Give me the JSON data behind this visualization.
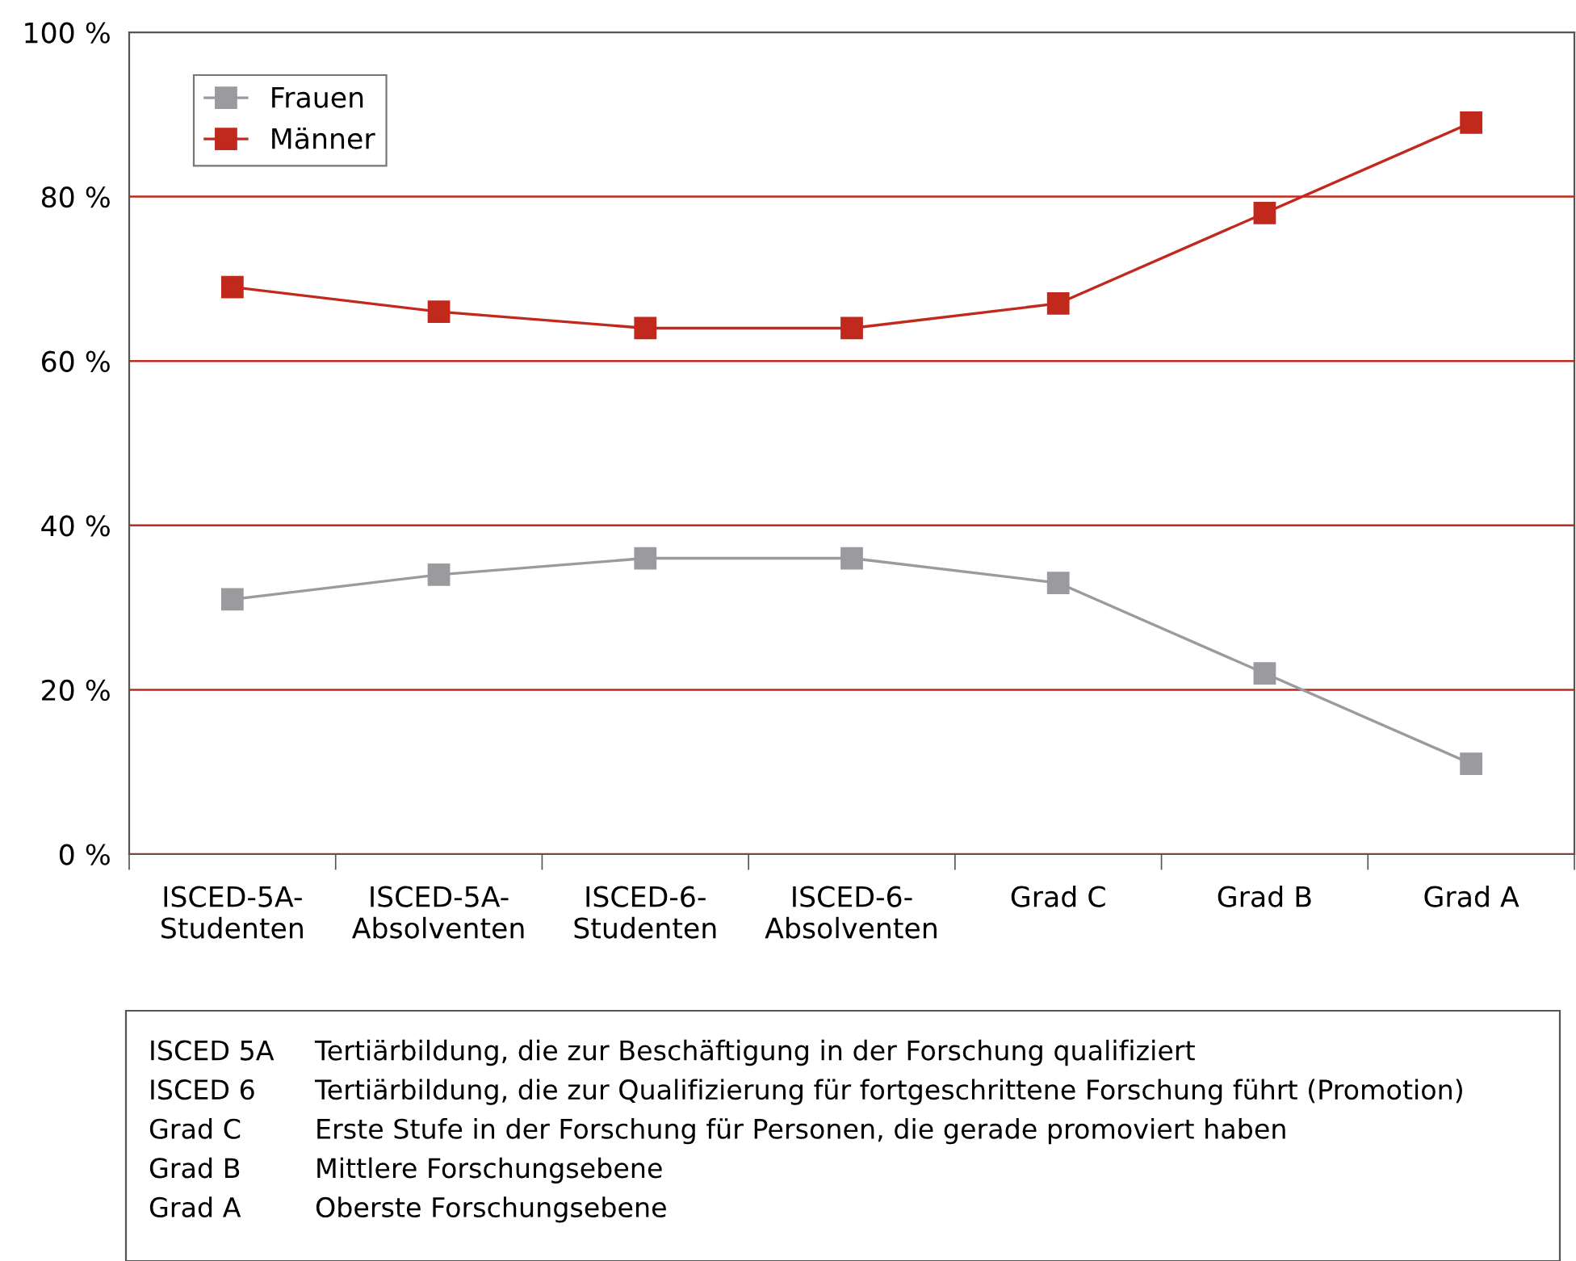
{
  "chart_data": {
    "type": "line",
    "categories": [
      "ISCED-5A-\nStudenten",
      "ISCED-5A-\nAbsolventen",
      "ISCED-6-\nStudenten",
      "ISCED-6-\nAbsolventen",
      "Grad C",
      "Grad B",
      "Grad A"
    ],
    "series": [
      {
        "name": "Frauen",
        "color": "#9b9a9f",
        "values": [
          31,
          34,
          36,
          36,
          33,
          22,
          11
        ]
      },
      {
        "name": "Männer",
        "color": "#c1291d",
        "values": [
          69,
          66,
          64,
          64,
          67,
          78,
          89
        ]
      }
    ],
    "ylim": [
      0,
      100
    ],
    "yticks": [
      {
        "value": 0,
        "label": "0 %"
      },
      {
        "value": 20,
        "label": "20 %"
      },
      {
        "value": 40,
        "label": "40 %"
      },
      {
        "value": 60,
        "label": "60 %"
      },
      {
        "value": 80,
        "label": "80 %"
      },
      {
        "value": 100,
        "label": "100 %"
      }
    ],
    "grid": "y",
    "legend": "top left",
    "marker": "square",
    "line_style": "solid",
    "annotations": [
      "ISCED 5A",
      "Tertiärbildung, die zur Beschäftigung in der Forschung qualifiziert",
      "ISCED 6",
      "Tertiärbildung, die zur Qualifizierung für fortgeschrittene Forschung führt (Promotion)",
      "Grad C",
      "Erste Stufe in der Forschung für Personen, die gerade promoviert haben",
      "Grad B",
      "Mittlere Forschungsebene",
      "Grad A",
      "Oberste Forschungsebene"
    ]
  }
}
